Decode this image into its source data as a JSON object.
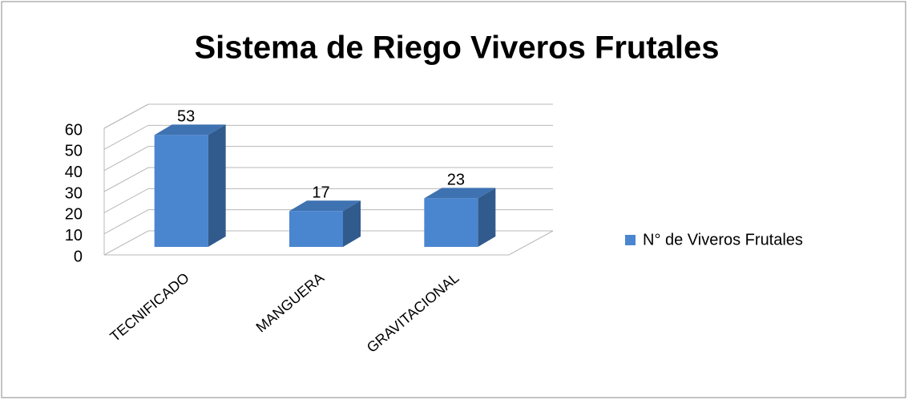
{
  "chart_data": {
    "type": "bar3d",
    "title": "Sistema de Riego Viveros Frutales",
    "categories": [
      "TECNIFICADO",
      "MANGUERA",
      "GRAVITACIONAL"
    ],
    "series": [
      {
        "name": "N° de Viveros Frutales",
        "color": "#4a86d0",
        "values": [
          53,
          17,
          23
        ]
      }
    ],
    "ylim": [
      0,
      60
    ],
    "yticks": [
      0,
      10,
      20,
      30,
      40,
      50,
      60
    ],
    "grid": true,
    "legend": "right"
  }
}
